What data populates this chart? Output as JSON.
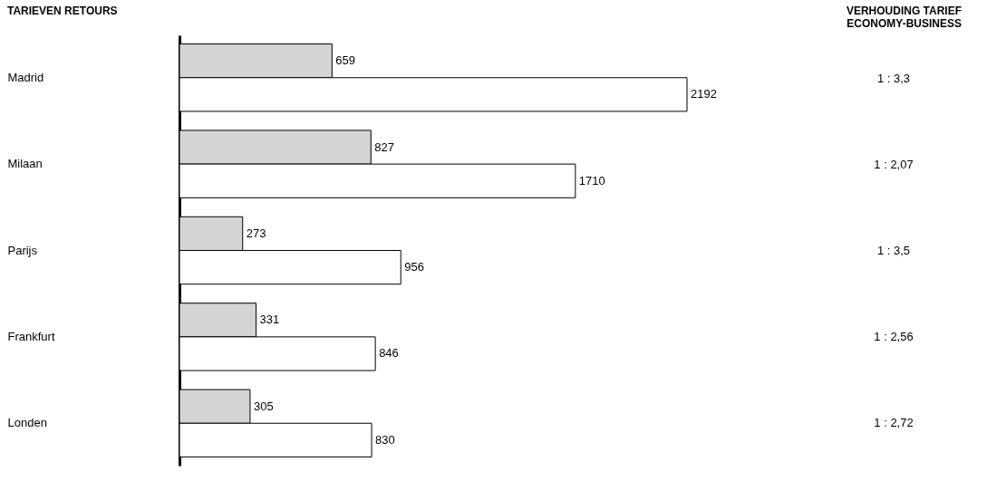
{
  "chart_data": {
    "type": "bar",
    "orientation": "horizontal",
    "title": "TARIEVEN RETOURS",
    "categories": [
      "Madrid",
      "Milaan",
      "Parijs",
      "Frankfurt",
      "Londen"
    ],
    "series": [
      {
        "color": "#d4d4d4",
        "values": [
          659,
          827,
          273,
          331,
          305
        ]
      },
      {
        "color": "#ffffff",
        "values": [
          2192,
          1710,
          956,
          846,
          830
        ]
      }
    ],
    "data_labels": true,
    "annotations": [
      "VERHOUDING TARIEF\nECONOMY-BUSINESS",
      "1 : 3,3",
      "1 : 2,07",
      "1 : 3,5",
      "1 : 2,56",
      "1 : 2,72"
    ]
  }
}
